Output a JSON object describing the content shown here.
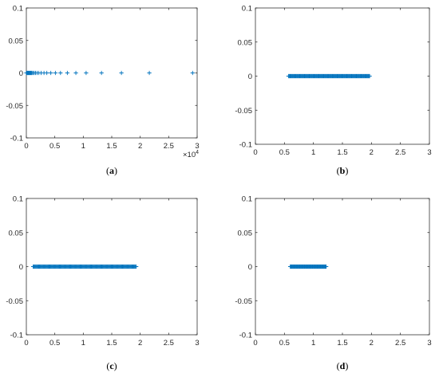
{
  "colors": {
    "marker": "#0072BD",
    "axis": "#262626",
    "background": "#ffffff"
  },
  "chart_data": [
    {
      "type": "scatter",
      "panel_label": "a",
      "marker": "+",
      "xlim": [
        0,
        3
      ],
      "ylim": [
        -0.1,
        0.1
      ],
      "x_tick_labels": [
        "0",
        "0.5",
        "1",
        "1.5",
        "2",
        "2.5",
        "3"
      ],
      "y_tick_labels": [
        "-0.1",
        "-0.05",
        "0",
        "0.05",
        "0.1"
      ],
      "x_exponent": "×10",
      "x_exponent_power": "4",
      "grid": false,
      "series": [
        {
          "x": [
            0.0,
            0.01,
            0.02,
            0.03,
            0.04,
            0.05,
            0.06,
            0.07,
            0.08,
            0.09,
            0.1,
            0.12,
            0.14,
            0.16,
            0.19,
            0.22,
            0.26,
            0.31,
            0.36,
            0.43,
            0.51,
            0.6,
            0.72,
            0.87,
            1.05,
            1.32,
            1.67,
            2.16,
            2.92
          ],
          "y": [
            0,
            0,
            0,
            0,
            0,
            0,
            0,
            0,
            0,
            0,
            0,
            0,
            0,
            0,
            0,
            0,
            0,
            0,
            0,
            0,
            0,
            0,
            0,
            0,
            0,
            0,
            0,
            0,
            0
          ]
        }
      ]
    },
    {
      "type": "scatter",
      "panel_label": "b",
      "marker": "+",
      "xlim": [
        0,
        3
      ],
      "ylim": [
        -0.1,
        0.1
      ],
      "x_tick_labels": [
        "0",
        "0.5",
        "1",
        "1.5",
        "2",
        "2.5",
        "3"
      ],
      "y_tick_labels": [
        "-0.1",
        "-0.05",
        "0",
        "0.05",
        "0.1"
      ],
      "grid": false,
      "series": [
        {
          "x_range": [
            0.57,
            1.97
          ],
          "y": 0,
          "count": 120
        }
      ]
    },
    {
      "type": "scatter",
      "panel_label": "c",
      "marker": "+",
      "xlim": [
        0,
        3
      ],
      "ylim": [
        -0.1,
        0.1
      ],
      "x_tick_labels": [
        "0",
        "0.5",
        "1",
        "1.5",
        "2",
        "2.5",
        "3"
      ],
      "y_tick_labels": [
        "-0.1",
        "-0.05",
        "0",
        "0.05",
        "0.1"
      ],
      "grid": false,
      "series": [
        {
          "x_range": [
            0.12,
            1.93
          ],
          "y": 0,
          "count": 140
        }
      ]
    },
    {
      "type": "scatter",
      "panel_label": "d",
      "marker": "+",
      "xlim": [
        0,
        3
      ],
      "ylim": [
        -0.1,
        0.1
      ],
      "x_tick_labels": [
        "0",
        "0.5",
        "1",
        "1.5",
        "2",
        "2.5",
        "3"
      ],
      "y_tick_labels": [
        "-0.1",
        "-0.05",
        "0",
        "0.05",
        "0.1"
      ],
      "grid": false,
      "series": [
        {
          "x_range": [
            0.6,
            1.22
          ],
          "y": 0,
          "count": 60
        }
      ]
    }
  ]
}
